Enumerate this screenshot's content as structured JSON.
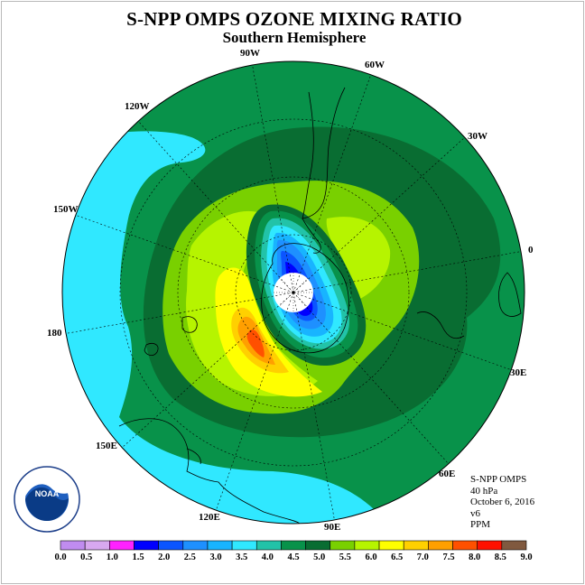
{
  "header": {
    "title": "S-NPP OMPS OZONE MIXING RATIO",
    "subtitle": "Southern Hemisphere"
  },
  "map": {
    "longitude_labels": [
      "0",
      "30W",
      "60W",
      "90W",
      "120W",
      "150W",
      "180",
      "150E",
      "120E",
      "90E",
      "60E",
      "30E"
    ],
    "pole_fill_color": "#ffffff"
  },
  "info": {
    "instrument": "S-NPP OMPS",
    "level": "40 hPa",
    "date": "October 6, 2016",
    "version": "v6",
    "units": "PPM"
  },
  "logo": {
    "name": "noaa-logo",
    "text": "NOAA",
    "ring_text": "NATIONAL OCEANIC AND ATMOSPHERIC ADMINISTRATION · U.S. DEPARTMENT OF COMMERCE"
  },
  "colorbar": {
    "labels": [
      "0.0",
      "0.5",
      "1.0",
      "1.5",
      "2.0",
      "2.5",
      "3.0",
      "3.5",
      "4.0",
      "4.5",
      "5.0",
      "5.5",
      "6.0",
      "6.5",
      "7.0",
      "7.5",
      "8.0",
      "8.5",
      "9.0"
    ],
    "colors": [
      "#c08cf0",
      "#d8a8f0",
      "#ff22ff",
      "#0000ff",
      "#0b55ff",
      "#1e90ff",
      "#18b4ff",
      "#30e8ff",
      "#22c3a8",
      "#08924a",
      "#096d32",
      "#79d000",
      "#b6f400",
      "#ffff00",
      "#ffd000",
      "#ff9f00",
      "#ff5000",
      "#ff1100",
      "#80593f"
    ]
  }
}
